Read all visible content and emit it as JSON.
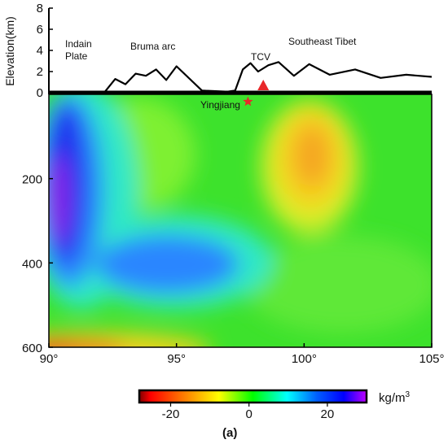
{
  "chart_data": [
    {
      "type": "line",
      "ylabel": "Elevation(km)",
      "ylim": [
        0,
        8
      ],
      "yticks": [
        "0",
        "2",
        "4",
        "6",
        "8"
      ],
      "annotations": {
        "indian": [
          "Indain",
          "Plate"
        ],
        "burma": "Bruma arc",
        "tcv": "TCV",
        "tibet": "Southeast Tibet",
        "yingjiang": "Yingjiang"
      },
      "x": [
        90,
        92.2,
        92.6,
        93.0,
        93.4,
        93.8,
        94.2,
        94.6,
        95.0,
        96.0,
        97.0,
        97.3,
        97.6,
        97.9,
        98.2,
        98.6,
        99.0,
        99.6,
        100.2,
        101.0,
        102.0,
        103.0,
        104.0,
        105.0
      ],
      "y": [
        0.1,
        0.1,
        1.3,
        0.8,
        1.8,
        1.6,
        2.2,
        1.2,
        2.5,
        0.2,
        0.1,
        0.2,
        2.2,
        2.8,
        2.0,
        2.6,
        2.9,
        1.6,
        2.7,
        1.7,
        2.2,
        1.4,
        1.7,
        1.5
      ],
      "markers": [
        {
          "name": "TCV volcano",
          "symbol": "triangle",
          "x": 98.4,
          "color": "#e8282a"
        },
        {
          "name": "Yingjiang",
          "symbol": "star",
          "x": 97.8,
          "color": "#e8282a"
        }
      ]
    },
    {
      "type": "heatmap",
      "xlim": [
        90,
        105
      ],
      "ylim": [
        0,
        600
      ],
      "xticks": [
        "90°",
        "95°",
        "100°",
        "105°"
      ],
      "yticks": [
        "200",
        "400",
        "600"
      ],
      "anomalies": [
        {
          "name": "western low-density anomaly",
          "x": 90.6,
          "depth": 230,
          "value": 30
        },
        {
          "name": "central low-density anomaly",
          "x": 95.8,
          "depth": 420,
          "value": 10
        },
        {
          "name": "eastern high-density anomaly",
          "x": 100.6,
          "depth": 200,
          "value": -10
        },
        {
          "name": "deep south-west high-density anomaly",
          "x": 90.5,
          "depth": 600,
          "value": -25
        }
      ]
    },
    {
      "type": "colorbar",
      "range": [
        -28,
        30
      ],
      "ticks": [
        "-20",
        "0",
        "20"
      ],
      "unit_base": "kg/m",
      "unit_exp": "3",
      "colors": [
        "#800000",
        "#ff0000",
        "#ff8000",
        "#ffff00",
        "#00ff00",
        "#00ffff",
        "#0060ff",
        "#0000ff",
        "#c000ff"
      ],
      "stops": [
        0,
        0.05,
        0.2,
        0.35,
        0.5,
        0.65,
        0.78,
        0.9,
        1.0
      ]
    }
  ],
  "caption": "(a)"
}
